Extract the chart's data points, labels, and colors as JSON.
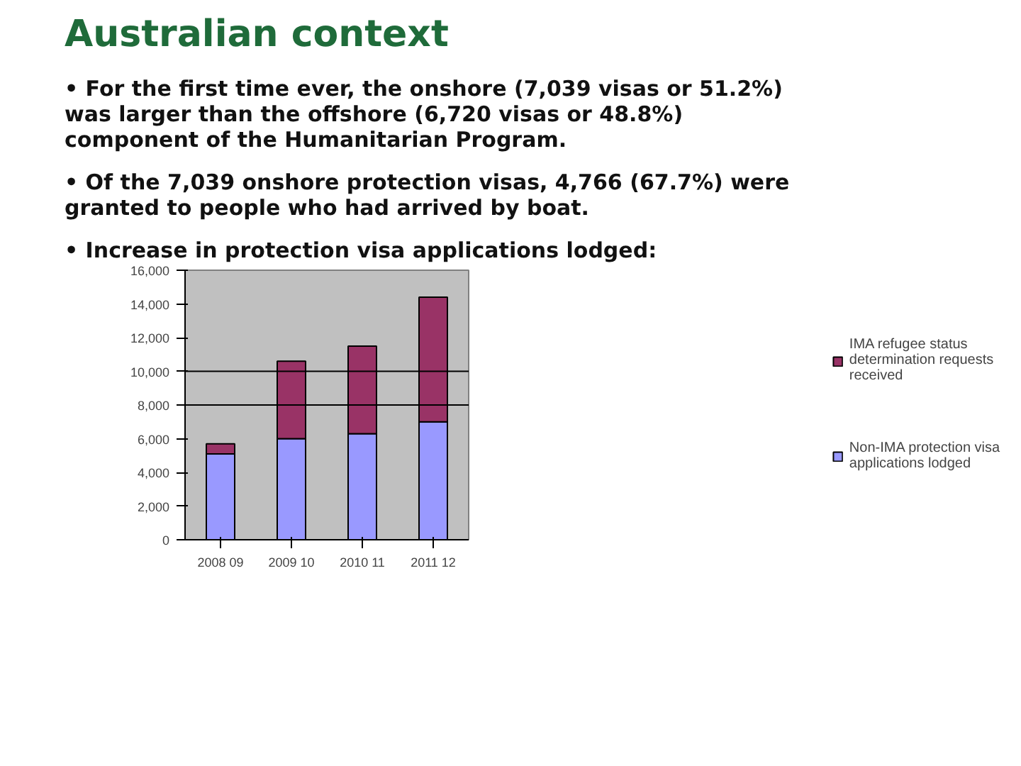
{
  "chart_data": {
    "type": "bar",
    "stacked": true,
    "title": "Australian context",
    "annotations": [
      "•  For the first time ever, the onshore (7,039 visas or 51.2%) was larger than the offshore (6,720 visas or 48.8%) component of the Humanitarian Program.",
      "•  Of the 7,039 onshore protection visas, 4,766 (67.7%) were granted to people who had arrived by boat.",
      "•  Increase in protection visa applications lodged:"
    ],
    "categories": [
      "2008 09",
      "2009 10",
      "2010 11",
      "2011 12"
    ],
    "series": [
      {
        "name": "Non-IMA protection visa applications lodged",
        "color": "#9999ff",
        "values": [
          5100,
          6000,
          6300,
          7000
        ]
      },
      {
        "name": "IMA refugee status determination requests received",
        "color": "#993366",
        "values": [
          600,
          4600,
          5200,
          7400
        ]
      }
    ],
    "ylim": [
      0,
      16000
    ],
    "yticks": [
      0,
      {
        "value": 2000,
        "label": "2,000"
      },
      {
        "value": 4000,
        "label": "4,000"
      },
      {
        "value": 6000,
        "label": "6,000"
      },
      {
        "value": 8000,
        "label": "8,000"
      },
      {
        "value": 10000,
        "label": "10,000"
      },
      {
        "value": 12000,
        "label": "12,000"
      },
      {
        "value": 14000,
        "label": "14,000"
      },
      {
        "value": 16000,
        "label": "16,000"
      }
    ],
    "ref_lines": [
      {
        "axis": "y",
        "value": 8000,
        "color": "#000000"
      },
      {
        "axis": "y",
        "value": 10000,
        "color": "#000000"
      }
    ],
    "legend": "right",
    "grid": false
  }
}
